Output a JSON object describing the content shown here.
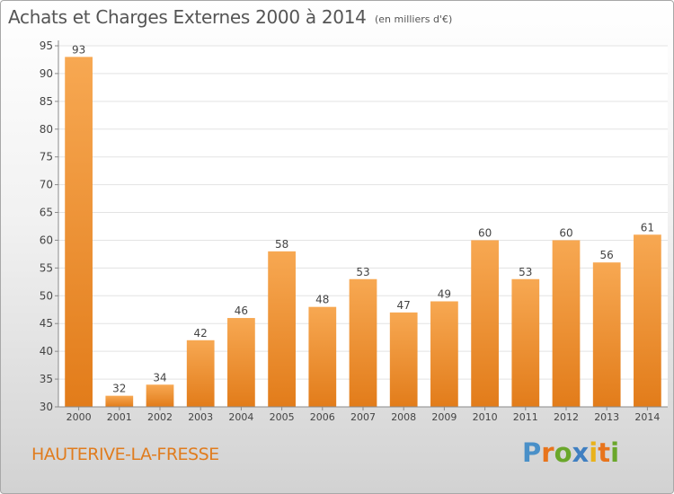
{
  "header": {
    "title": "Achats et Charges Externes 2000 à 2014",
    "subtitle": "(en milliers d'€)"
  },
  "footer": {
    "place": "HAUTERIVE-LA-FRESSE",
    "logo_letters": [
      "P",
      "r",
      "o",
      "x",
      "i",
      "t",
      "i"
    ],
    "logo_colors": [
      "#4a90c8",
      "#e8741c",
      "#6aa72b",
      "#3f7fc1",
      "#e9b21a",
      "#e8741c",
      "#6aa72b"
    ]
  },
  "colors": {
    "bar_light": "#f7a852",
    "bar_dark": "#e27c1a",
    "grid": "#e3e3e3",
    "axis": "#8a8a8a",
    "text": "#444444"
  },
  "chart_data": {
    "type": "bar",
    "categories": [
      "2000",
      "2001",
      "2002",
      "2003",
      "2004",
      "2005",
      "2006",
      "2007",
      "2008",
      "2009",
      "2010",
      "2011",
      "2012",
      "2013",
      "2014"
    ],
    "values": [
      93,
      32,
      34,
      42,
      46,
      58,
      48,
      53,
      47,
      49,
      60,
      53,
      60,
      56,
      61
    ],
    "ylim": [
      30,
      95
    ],
    "yticks": [
      30,
      35,
      40,
      45,
      50,
      55,
      60,
      65,
      70,
      75,
      80,
      85,
      90,
      95
    ],
    "grid": true,
    "data_labels": true
  }
}
